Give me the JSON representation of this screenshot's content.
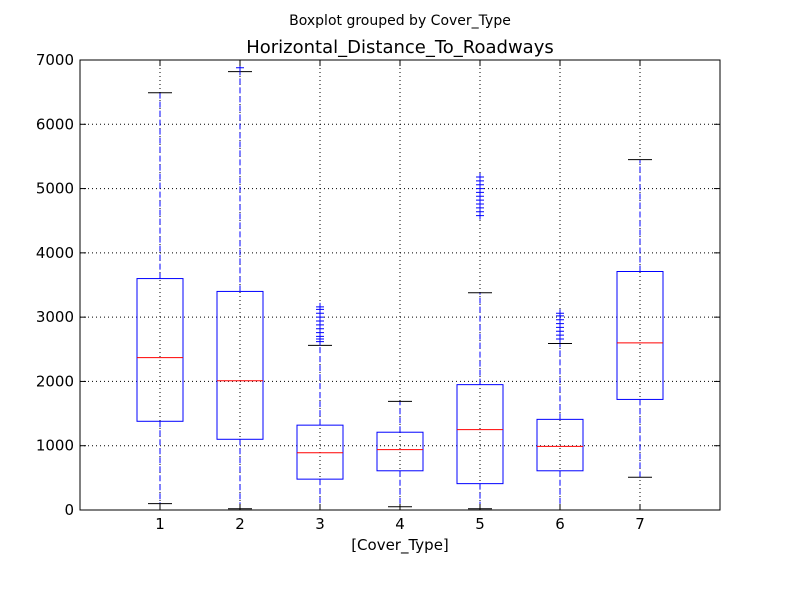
{
  "chart_data": {
    "type": "box",
    "suptitle": "Boxplot grouped by Cover_Type",
    "title": "Horizontal_Distance_To_Roadways",
    "xlabel": "[Cover_Type]",
    "ylabel": "",
    "ylim": [
      0,
      7000
    ],
    "yticks": [
      0,
      1000,
      2000,
      3000,
      4000,
      5000,
      6000,
      7000
    ],
    "grid": true,
    "categories": [
      "1",
      "2",
      "3",
      "4",
      "5",
      "6",
      "7"
    ],
    "boxes": [
      {
        "category": "1",
        "whisker_low": 100,
        "q1": 1380,
        "median": 2370,
        "q3": 3600,
        "whisker_high": 6490,
        "outliers": []
      },
      {
        "category": "2",
        "whisker_low": 20,
        "q1": 1100,
        "median": 2010,
        "q3": 3400,
        "whisker_high": 6820,
        "outliers": [
          6880
        ]
      },
      {
        "category": "3",
        "whisker_low": 0,
        "q1": 480,
        "median": 890,
        "q3": 1320,
        "whisker_high": 2560,
        "outliers": [
          2620,
          2660,
          2700,
          2760,
          2820,
          2880,
          2940,
          3000,
          3060,
          3120,
          3160
        ]
      },
      {
        "category": "4",
        "whisker_low": 50,
        "q1": 610,
        "median": 940,
        "q3": 1210,
        "whisker_high": 1690,
        "outliers": []
      },
      {
        "category": "5",
        "whisker_low": 20,
        "q1": 410,
        "median": 1250,
        "q3": 1950,
        "whisker_high": 3380,
        "outliers": [
          4580,
          4640,
          4700,
          4760,
          4820,
          4880,
          4940,
          5000,
          5060,
          5120,
          5180
        ]
      },
      {
        "category": "6",
        "whisker_low": 0,
        "q1": 610,
        "median": 990,
        "q3": 1410,
        "whisker_high": 2590,
        "outliers": [
          2660,
          2720,
          2780,
          2840,
          2900,
          2960,
          3020,
          3060
        ]
      },
      {
        "category": "7",
        "whisker_low": 510,
        "q1": 1720,
        "median": 2600,
        "q3": 3710,
        "whisker_high": 5450,
        "outliers": []
      }
    ],
    "colors": {
      "box": "#0000ff",
      "whisker": "#0000ff",
      "median": "#ff0000",
      "cap": "#000000",
      "outlier": "#0000ff",
      "grid": "#000000"
    }
  }
}
